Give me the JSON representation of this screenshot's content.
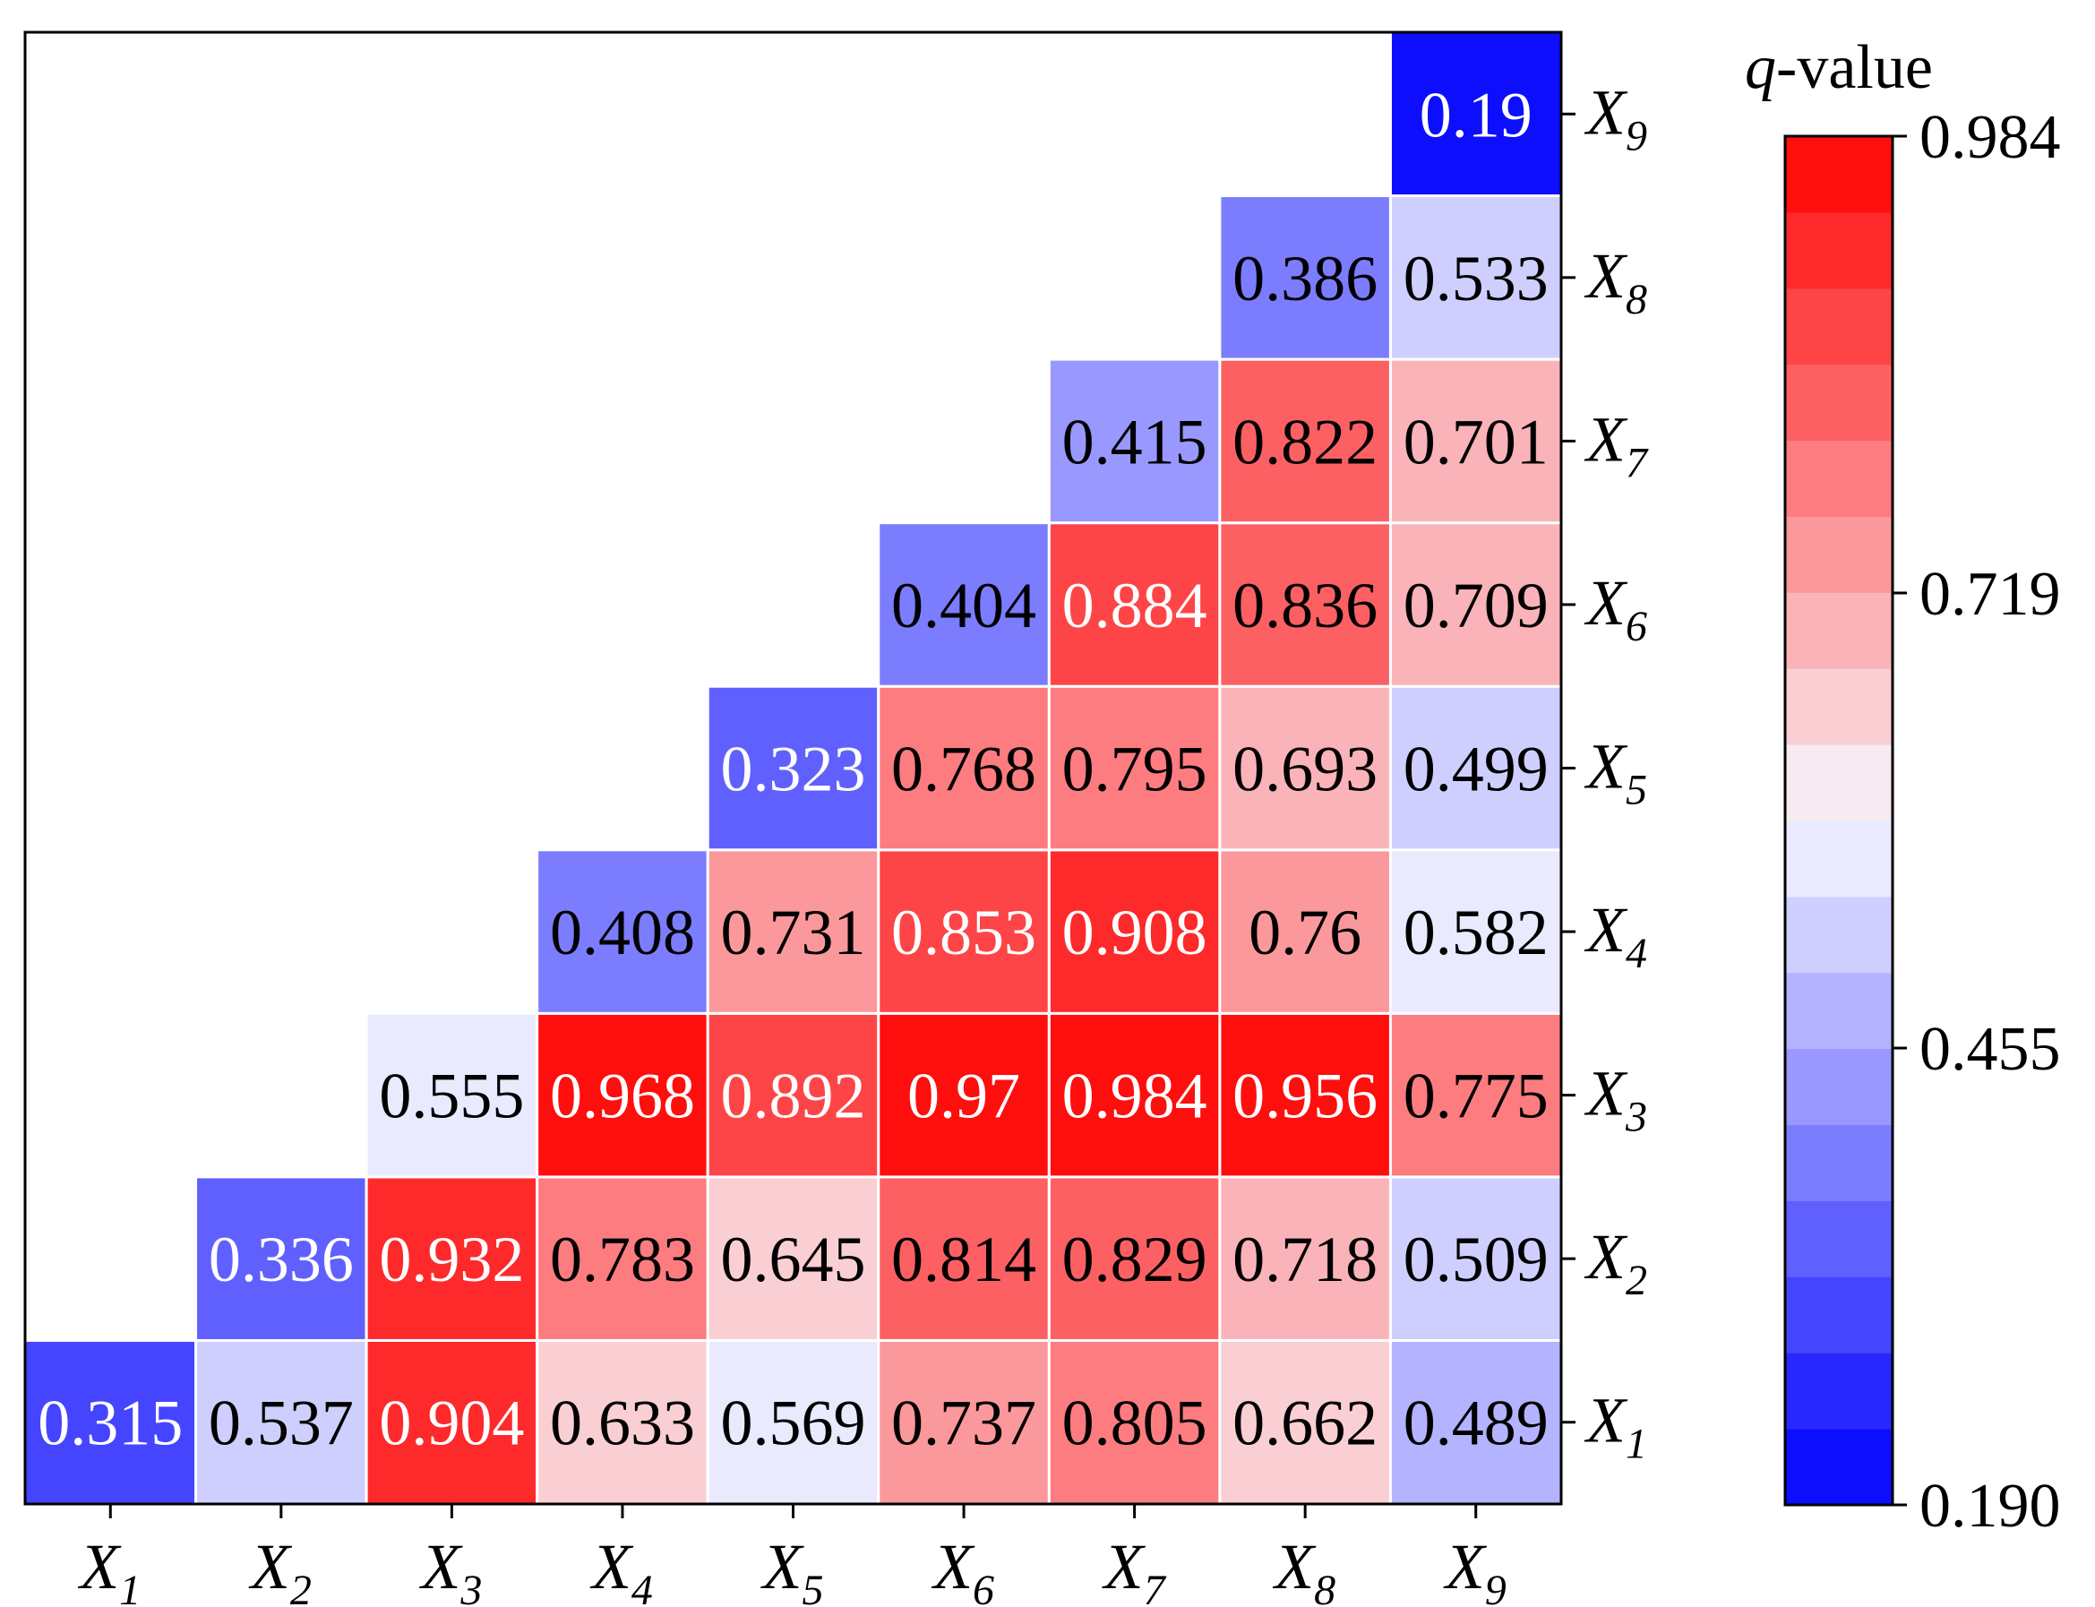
{
  "chart_data": {
    "type": "heatmap",
    "legend_title": "q-value",
    "legend_title_var": "q",
    "legend_title_rest": "-value",
    "x_categories": [
      "X1",
      "X2",
      "X3",
      "X4",
      "X5",
      "X6",
      "X7",
      "X8",
      "X9"
    ],
    "y_categories": [
      "X1",
      "X2",
      "X3",
      "X4",
      "X5",
      "X6",
      "X7",
      "X8",
      "X9"
    ],
    "category_symbol": "X",
    "category_subscripts": [
      "1",
      "2",
      "3",
      "4",
      "5",
      "6",
      "7",
      "8",
      "9"
    ],
    "matrix": [
      [
        "0.315",
        "0.537",
        "0.904",
        "0.633",
        "0.569",
        "0.737",
        "0.805",
        "0.662",
        "0.489"
      ],
      [
        null,
        "0.336",
        "0.932",
        "0.783",
        "0.645",
        "0.814",
        "0.829",
        "0.718",
        "0.509"
      ],
      [
        null,
        null,
        "0.555",
        "0.968",
        "0.892",
        "0.97",
        "0.984",
        "0.956",
        "0.775"
      ],
      [
        null,
        null,
        null,
        "0.408",
        "0.731",
        "0.853",
        "0.908",
        "0.76",
        "0.582"
      ],
      [
        null,
        null,
        null,
        null,
        "0.323",
        "0.768",
        "0.795",
        "0.693",
        "0.499"
      ],
      [
        null,
        null,
        null,
        null,
        null,
        "0.404",
        "0.884",
        "0.836",
        "0.709"
      ],
      [
        null,
        null,
        null,
        null,
        null,
        null,
        "0.415",
        "0.822",
        "0.701"
      ],
      [
        null,
        null,
        null,
        null,
        null,
        null,
        null,
        "0.386",
        "0.533"
      ],
      [
        null,
        null,
        null,
        null,
        null,
        null,
        null,
        null,
        "0.19"
      ]
    ],
    "colorbar": {
      "min": 0.19,
      "max": 0.984,
      "tick_values": [
        0.19,
        0.455,
        0.719,
        0.984
      ],
      "tick_labels": [
        "0.190",
        "0.455",
        "0.719",
        "0.984"
      ],
      "low_color": "#0000ff",
      "mid_color": "#f8f8ff",
      "high_color": "#ff0000",
      "levels": 18
    },
    "cell_border_color": "#ffffff"
  }
}
